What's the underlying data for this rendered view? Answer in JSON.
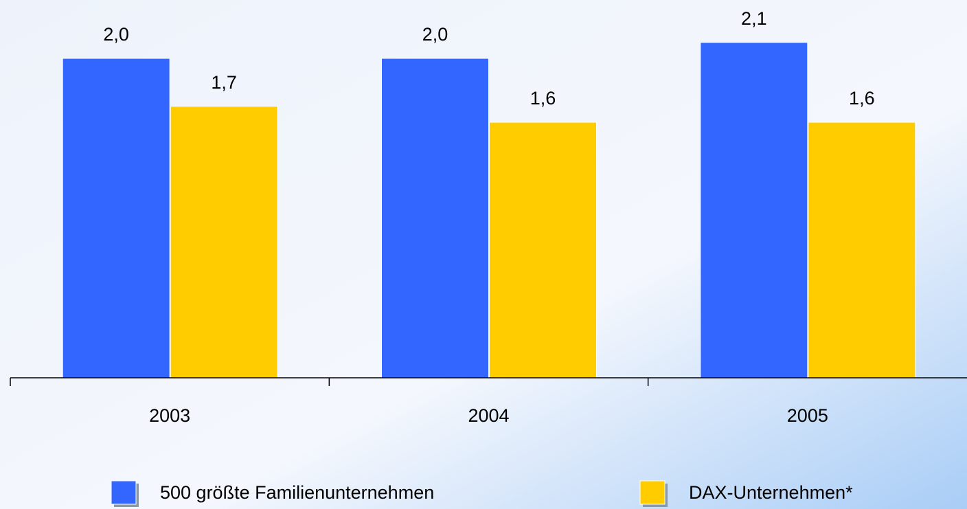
{
  "chart_data": {
    "type": "bar",
    "categories": [
      "2003",
      "2004",
      "2005"
    ],
    "series": [
      {
        "name": "500 größte Familienunternehmen",
        "color": "#3366ff",
        "values": [
          2.0,
          2.0,
          2.1
        ],
        "value_labels": [
          "2,0",
          "2,0",
          "2,1"
        ]
      },
      {
        "name": "DAX-Unternehmen*",
        "color": "#ffcc00",
        "values": [
          1.7,
          1.6,
          1.6
        ],
        "value_labels": [
          "1,7",
          "1,6",
          "1,6"
        ]
      }
    ],
    "ylim": [
      0,
      2.2
    ]
  }
}
